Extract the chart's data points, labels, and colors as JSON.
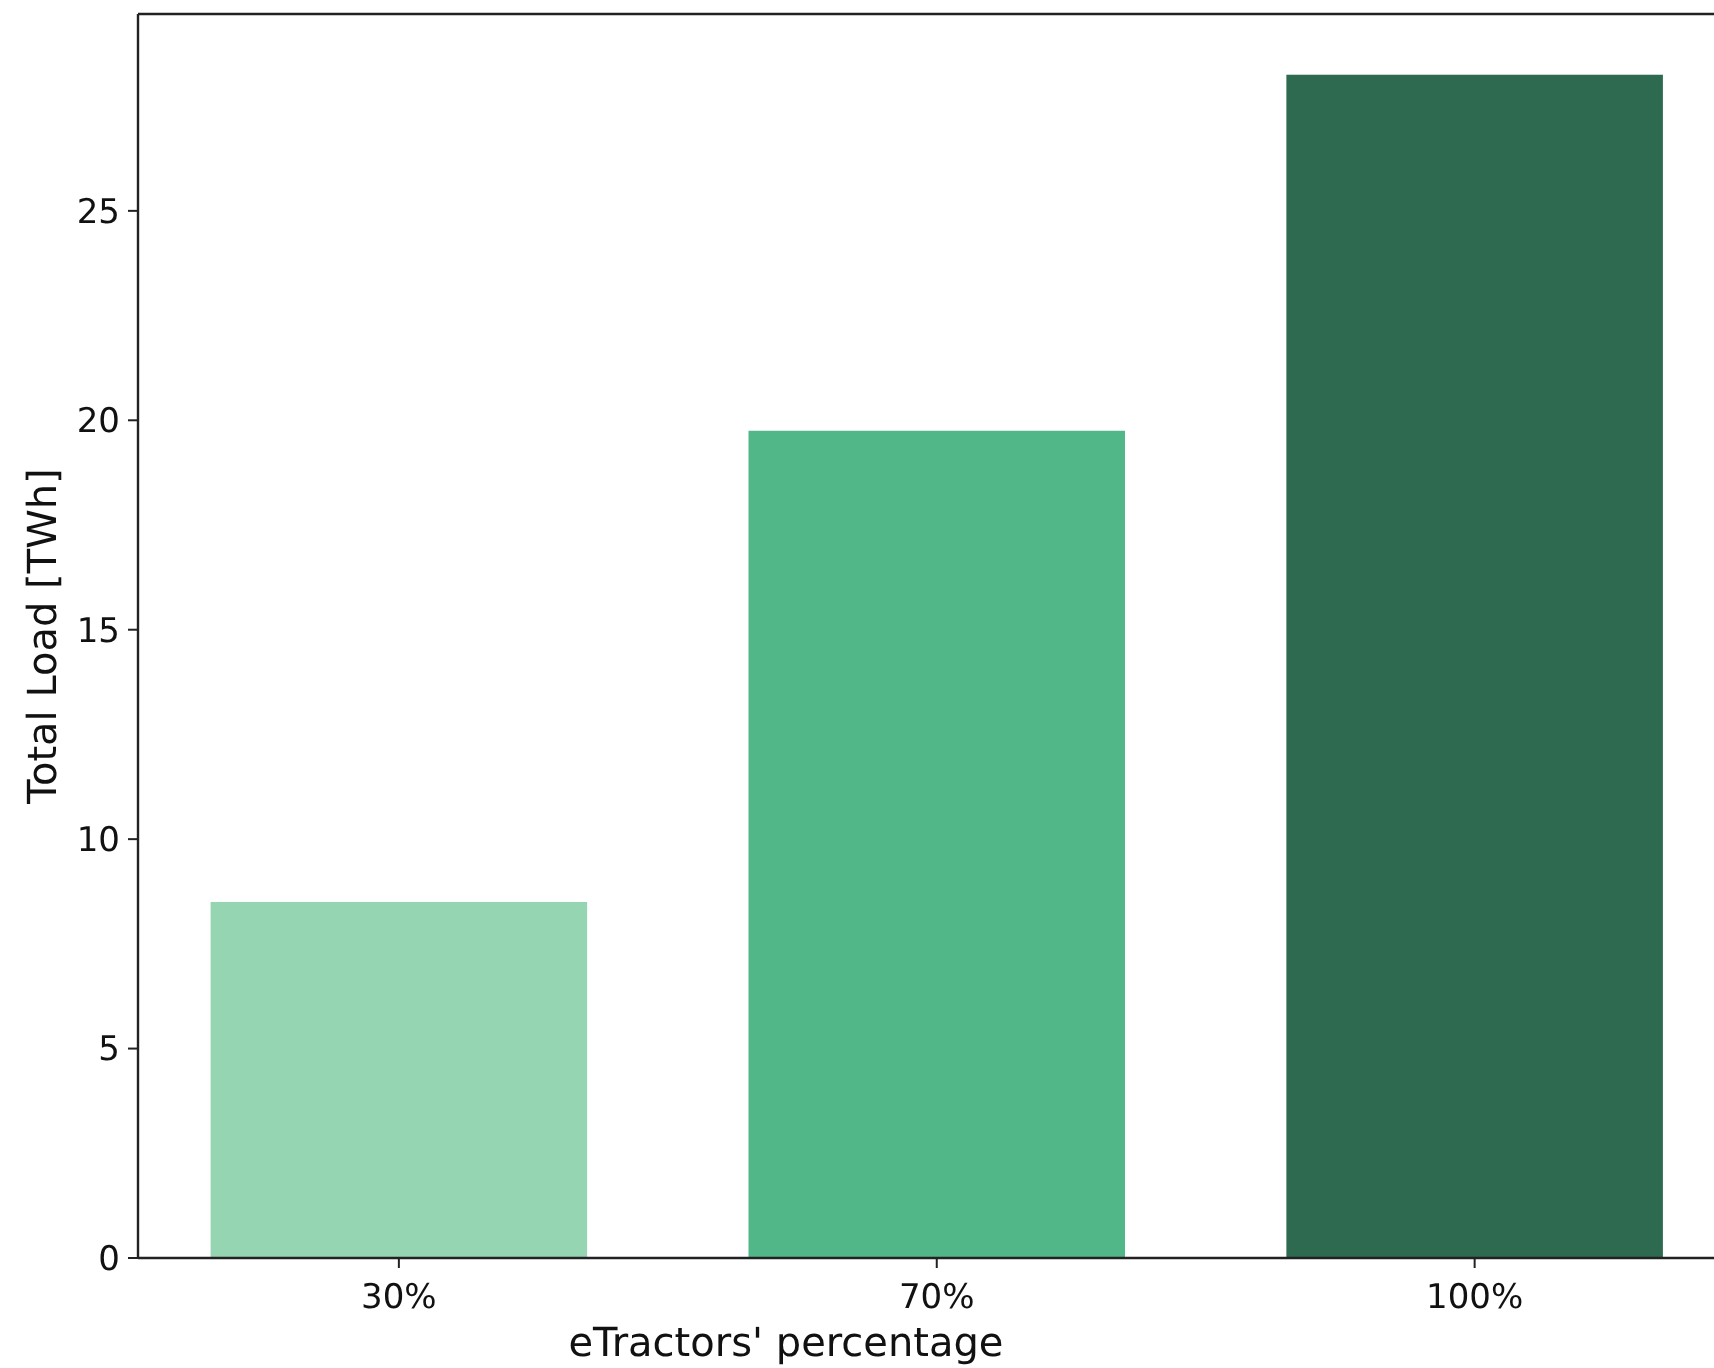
{
  "chart_data": {
    "type": "bar",
    "xlabel": "eTractors' percentage",
    "ylabel": "Total Load [TWh]",
    "categories": [
      "30%",
      "70%",
      "100%"
    ],
    "values": [
      8.5,
      19.75,
      28.25
    ],
    "colors": [
      "#95d5b2",
      "#52b788",
      "#2d6a4f"
    ],
    "ylim": [
      0,
      29.7
    ],
    "yticks": [
      0,
      5,
      10,
      15,
      20,
      25
    ]
  }
}
